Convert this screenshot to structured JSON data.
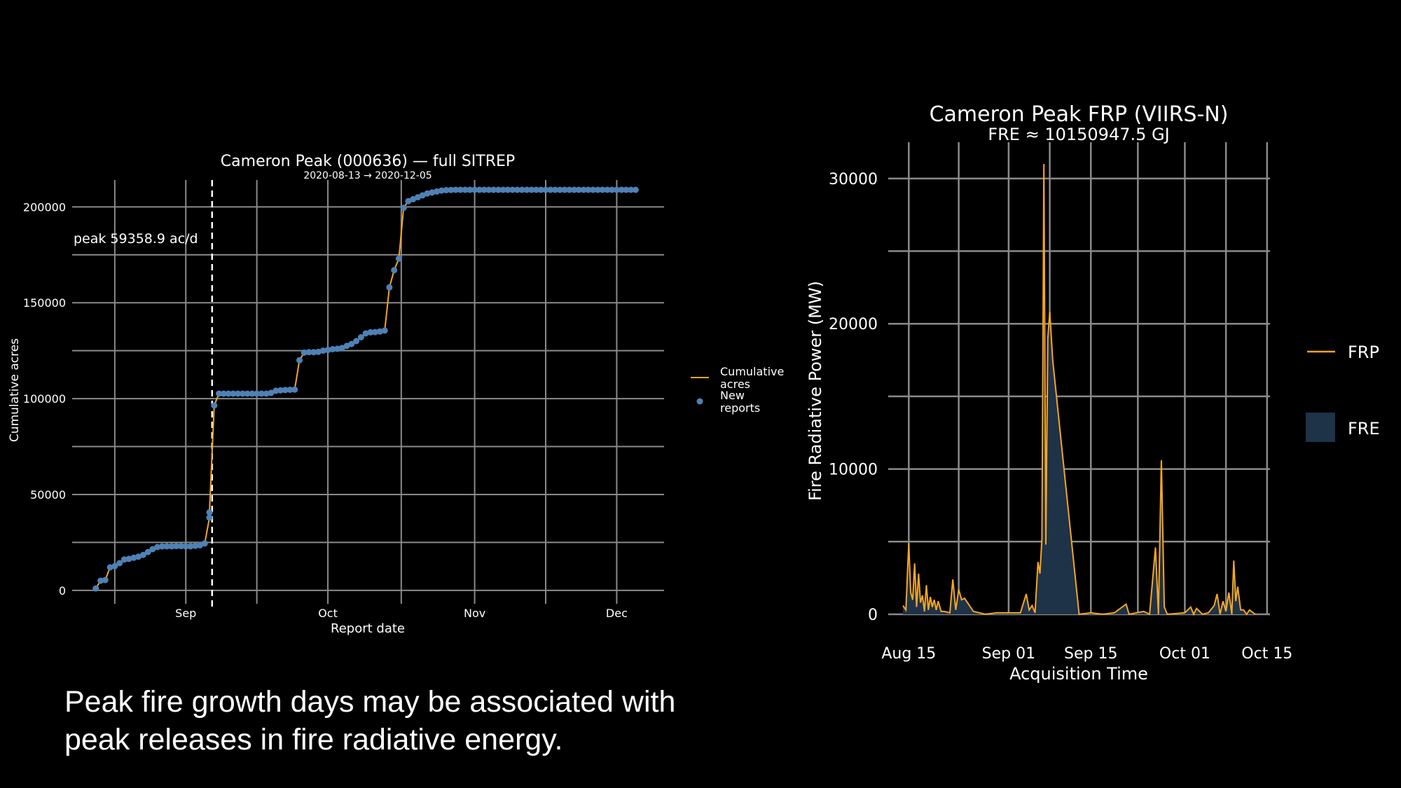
{
  "caption": {
    "line1": "Peak fire growth days may be associated with",
    "line2": "peak releases in fire radiative energy."
  },
  "colors": {
    "background": "#000000",
    "grid": "#8a8a8a",
    "line": "#f5a623",
    "points": "#4f81b5",
    "fre_fill": "#1e3248",
    "text": "#ffffff"
  },
  "chart_data": [
    {
      "type": "line",
      "title": "Cameron Peak (000636) — full SITREP",
      "subtitle": "2020-08-13 → 2020-12-05",
      "xlabel": "Report date",
      "ylabel": "Cumulative acres",
      "x_ticks": [
        {
          "date": "2020-09-01",
          "label": "Sep"
        },
        {
          "date": "2020-10-01",
          "label": "Oct"
        },
        {
          "date": "2020-11-01",
          "label": "Nov"
        },
        {
          "date": "2020-12-01",
          "label": "Dec"
        }
      ],
      "xlim": [
        "2020-08-08",
        "2020-12-11"
      ],
      "ylim": [
        -7000,
        214000
      ],
      "y_ticks": [
        0,
        50000,
        100000,
        150000,
        200000
      ],
      "y_tick_labels": [
        "0",
        "50000",
        "100000",
        "150000",
        "200000"
      ],
      "grid": true,
      "legend": {
        "placement": "right",
        "entries": [
          "Cumulative acres",
          "New reports"
        ]
      },
      "peak_marker": {
        "date": "2020-09-07",
        "label": "peak 59358.9 ac/d"
      },
      "series": [
        {
          "name": "Cumulative acres",
          "points": [
            [
              "2020-08-13",
              1000
            ],
            [
              "2020-08-14",
              5000
            ],
            [
              "2020-08-15",
              5400
            ],
            [
              "2020-08-16",
              12000
            ],
            [
              "2020-08-17",
              12600
            ],
            [
              "2020-08-18",
              14200
            ],
            [
              "2020-08-19",
              16100
            ],
            [
              "2020-08-20",
              16400
            ],
            [
              "2020-08-21",
              17000
            ],
            [
              "2020-08-22",
              17600
            ],
            [
              "2020-08-23",
              18500
            ],
            [
              "2020-08-24",
              20000
            ],
            [
              "2020-08-25",
              21500
            ],
            [
              "2020-08-26",
              22600
            ],
            [
              "2020-08-27",
              22900
            ],
            [
              "2020-08-28",
              23000
            ],
            [
              "2020-08-29",
              23000
            ],
            [
              "2020-08-30",
              23100
            ],
            [
              "2020-08-31",
              23100
            ],
            [
              "2020-09-01",
              23000
            ],
            [
              "2020-09-02",
              23000
            ],
            [
              "2020-09-03",
              23200
            ],
            [
              "2020-09-04",
              23500
            ],
            [
              "2020-09-05",
              24500
            ],
            [
              "2020-09-06",
              37900
            ],
            [
              "2020-09-06",
              40700
            ],
            [
              "2020-09-07",
              96400
            ],
            [
              "2020-09-08",
              102600
            ],
            [
              "2020-09-09",
              102600
            ],
            [
              "2020-09-10",
              102600
            ],
            [
              "2020-09-11",
              102600
            ],
            [
              "2020-09-12",
              102600
            ],
            [
              "2020-09-13",
              102600
            ],
            [
              "2020-09-14",
              102600
            ],
            [
              "2020-09-15",
              102600
            ],
            [
              "2020-09-16",
              102600
            ],
            [
              "2020-09-17",
              102600
            ],
            [
              "2020-09-18",
              102600
            ],
            [
              "2020-09-19",
              103000
            ],
            [
              "2020-09-20",
              104100
            ],
            [
              "2020-09-21",
              104300
            ],
            [
              "2020-09-22",
              104500
            ],
            [
              "2020-09-23",
              104600
            ],
            [
              "2020-09-24",
              104700
            ],
            [
              "2020-09-25",
              120000
            ],
            [
              "2020-09-26",
              124000
            ],
            [
              "2020-09-27",
              124200
            ],
            [
              "2020-09-28",
              124200
            ],
            [
              "2020-09-29",
              124400
            ],
            [
              "2020-09-30",
              125000
            ],
            [
              "2020-10-01",
              125300
            ],
            [
              "2020-10-02",
              125800
            ],
            [
              "2020-10-03",
              126000
            ],
            [
              "2020-10-04",
              126400
            ],
            [
              "2020-10-05",
              127500
            ],
            [
              "2020-10-06",
              128500
            ],
            [
              "2020-10-07",
              130000
            ],
            [
              "2020-10-08",
              132000
            ],
            [
              "2020-10-09",
              134000
            ],
            [
              "2020-10-10",
              134600
            ],
            [
              "2020-10-11",
              134700
            ],
            [
              "2020-10-12",
              135000
            ],
            [
              "2020-10-13",
              135500
            ],
            [
              "2020-10-14",
              158000
            ],
            [
              "2020-10-15",
              167000
            ],
            [
              "2020-10-16",
              173000
            ],
            [
              "2020-10-17",
              199500
            ],
            [
              "2020-10-18",
              203000
            ],
            [
              "2020-10-19",
              204000
            ],
            [
              "2020-10-20",
              205000
            ],
            [
              "2020-10-21",
              206000
            ],
            [
              "2020-10-22",
              207000
            ],
            [
              "2020-10-23",
              207500
            ],
            [
              "2020-10-24",
              208000
            ],
            [
              "2020-10-25",
              208500
            ],
            [
              "2020-10-26",
              208700
            ],
            [
              "2020-10-27",
              208800
            ],
            [
              "2020-10-28",
              208900
            ],
            [
              "2020-10-29",
              208900
            ],
            [
              "2020-10-30",
              208900
            ],
            [
              "2020-10-31",
              208900
            ],
            [
              "2020-11-01",
              208900
            ],
            [
              "2020-11-02",
              208900
            ],
            [
              "2020-11-03",
              208900
            ],
            [
              "2020-11-04",
              208900
            ],
            [
              "2020-11-05",
              208900
            ],
            [
              "2020-11-06",
              208900
            ],
            [
              "2020-11-07",
              208900
            ],
            [
              "2020-11-08",
              208900
            ],
            [
              "2020-11-09",
              208900
            ],
            [
              "2020-11-10",
              208900
            ],
            [
              "2020-11-11",
              208900
            ],
            [
              "2020-11-12",
              208900
            ],
            [
              "2020-11-13",
              208900
            ],
            [
              "2020-11-14",
              208900
            ],
            [
              "2020-11-15",
              208900
            ],
            [
              "2020-11-16",
              208900
            ],
            [
              "2020-11-17",
              208900
            ],
            [
              "2020-11-18",
              208900
            ],
            [
              "2020-11-19",
              208900
            ],
            [
              "2020-11-20",
              208900
            ],
            [
              "2020-11-21",
              208900
            ],
            [
              "2020-11-22",
              208900
            ],
            [
              "2020-11-23",
              208900
            ],
            [
              "2020-11-24",
              208900
            ],
            [
              "2020-11-25",
              208900
            ],
            [
              "2020-11-26",
              208900
            ],
            [
              "2020-11-27",
              208900
            ],
            [
              "2020-11-28",
              208900
            ],
            [
              "2020-11-29",
              208900
            ],
            [
              "2020-11-30",
              208900
            ],
            [
              "2020-12-01",
              208900
            ],
            [
              "2020-12-02",
              208900
            ],
            [
              "2020-12-03",
              208900
            ],
            [
              "2020-12-04",
              208900
            ],
            [
              "2020-12-05",
              208900
            ]
          ]
        }
      ]
    },
    {
      "type": "area",
      "title": "Cameron Peak FRP (VIIRS-N)",
      "subtitle": "FRE ≈ 10150947.5 GJ",
      "xlabel": "Acquisition Time",
      "ylabel": "Fire Radiative Power (MW)",
      "x_ticks": [
        {
          "date": "2020-08-15",
          "label": "Aug 15"
        },
        {
          "date": "2020-09-01",
          "label": "Sep 01"
        },
        {
          "date": "2020-09-15",
          "label": "Sep 15"
        },
        {
          "date": "2020-10-01",
          "label": "Oct 01"
        },
        {
          "date": "2020-10-15",
          "label": "Oct 15"
        }
      ],
      "xlim": [
        "2020-08-15",
        "2020-10-15"
      ],
      "ylim": [
        0,
        32500
      ],
      "y_ticks": [
        0,
        10000,
        20000,
        30000
      ],
      "y_tick_labels": [
        "0",
        "10000",
        "20000",
        "30000"
      ],
      "grid": true,
      "legend": {
        "placement": "right",
        "entries": [
          "FRP",
          "FRE"
        ]
      },
      "series": [
        {
          "name": "FRP",
          "points": [
            [
              "2020-08-14",
              600
            ],
            [
              "2020-08-14",
              300
            ],
            [
              "2020-08-15",
              4900
            ],
            [
              "2020-08-15",
              1500
            ],
            [
              "2020-08-15",
              1000
            ],
            [
              "2020-08-16",
              3500
            ],
            [
              "2020-08-16",
              500
            ],
            [
              "2020-08-16",
              2800
            ],
            [
              "2020-08-17",
              800
            ],
            [
              "2020-08-17",
              1300
            ],
            [
              "2020-08-17",
              200
            ],
            [
              "2020-08-18",
              2000
            ],
            [
              "2020-08-18",
              300
            ],
            [
              "2020-08-18",
              1200
            ],
            [
              "2020-08-19",
              500
            ],
            [
              "2020-08-19",
              1000
            ],
            [
              "2020-08-19",
              300
            ],
            [
              "2020-08-20",
              900
            ],
            [
              "2020-08-20",
              200
            ],
            [
              "2020-08-21",
              200
            ],
            [
              "2020-08-22",
              100
            ],
            [
              "2020-08-22",
              2400
            ],
            [
              "2020-08-23",
              300
            ],
            [
              "2020-08-23",
              1700
            ],
            [
              "2020-08-24",
              1000
            ],
            [
              "2020-08-24",
              1100
            ],
            [
              "2020-08-25",
              800
            ],
            [
              "2020-08-26",
              200
            ],
            [
              "2020-08-27",
              100
            ],
            [
              "2020-08-28",
              0
            ],
            [
              "2020-08-30",
              100
            ],
            [
              "2020-09-01",
              100
            ],
            [
              "2020-09-03",
              100
            ],
            [
              "2020-09-04",
              1400
            ],
            [
              "2020-09-04",
              300
            ],
            [
              "2020-09-05",
              600
            ],
            [
              "2020-09-05",
              100
            ],
            [
              "2020-09-06",
              3600
            ],
            [
              "2020-09-06",
              2800
            ],
            [
              "2020-09-06",
              5200
            ],
            [
              "2020-09-07",
              31000
            ],
            [
              "2020-09-07",
              4800
            ],
            [
              "2020-09-07",
              19000
            ],
            [
              "2020-09-08",
              20800
            ],
            [
              "2020-09-08",
              17500
            ],
            [
              "2020-09-13",
              0
            ],
            [
              "2020-09-15",
              100
            ],
            [
              "2020-09-17",
              0
            ],
            [
              "2020-09-19",
              100
            ],
            [
              "2020-09-21",
              700
            ],
            [
              "2020-09-21",
              0
            ],
            [
              "2020-09-24",
              200
            ],
            [
              "2020-09-25",
              0
            ],
            [
              "2020-09-26",
              4600
            ],
            [
              "2020-09-26",
              0
            ],
            [
              "2020-09-27",
              10600
            ],
            [
              "2020-09-27",
              500
            ],
            [
              "2020-09-28",
              0
            ],
            [
              "2020-10-01",
              100
            ],
            [
              "2020-10-02",
              500
            ],
            [
              "2020-10-02",
              0
            ],
            [
              "2020-10-03",
              400
            ],
            [
              "2020-10-04",
              0
            ],
            [
              "2020-10-05",
              100
            ],
            [
              "2020-10-06",
              600
            ],
            [
              "2020-10-06",
              1400
            ],
            [
              "2020-10-07",
              0
            ],
            [
              "2020-10-07",
              900
            ],
            [
              "2020-10-08",
              200
            ],
            [
              "2020-10-08",
              1500
            ],
            [
              "2020-10-09",
              0
            ],
            [
              "2020-10-09",
              3700
            ],
            [
              "2020-10-09",
              900
            ],
            [
              "2020-10-10",
              1900
            ],
            [
              "2020-10-10",
              300
            ],
            [
              "2020-10-11",
              300
            ],
            [
              "2020-10-11",
              0
            ],
            [
              "2020-10-12",
              300
            ],
            [
              "2020-10-13",
              0
            ]
          ]
        }
      ]
    }
  ]
}
